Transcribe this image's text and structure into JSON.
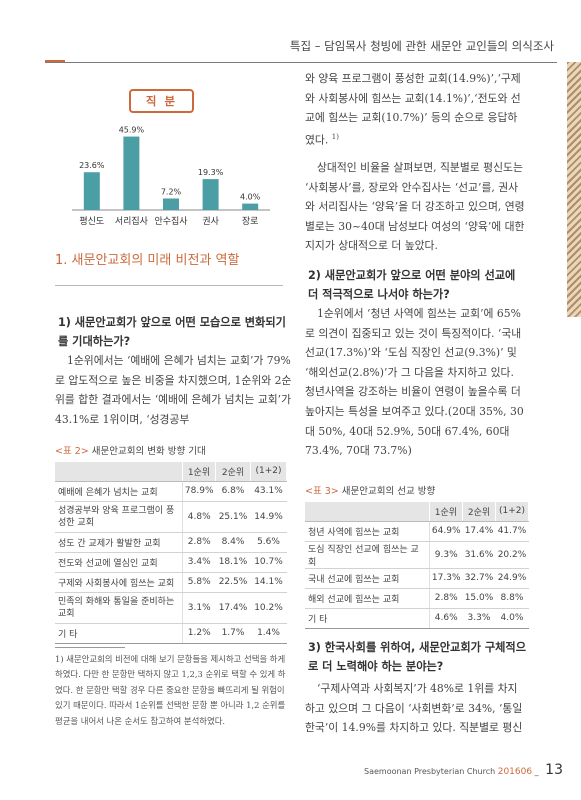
{
  "header": {
    "title": "특집 – 담임목사 청빙에 관한 새문안 교인들의 의식조사"
  },
  "chart": {
    "title": "직 분",
    "bar_color": "#4b9ea3"
  },
  "chart_data": {
    "type": "bar",
    "title": "직 분",
    "categories": [
      "평신도",
      "서리집사",
      "안수집사",
      "권사",
      "장로"
    ],
    "values": [
      23.6,
      45.9,
      7.2,
      19.3,
      4.0
    ],
    "value_labels": [
      "23.6%",
      "45.9%",
      "7.2%",
      "19.3%",
      "4.0%"
    ],
    "ylim": [
      0,
      50
    ],
    "grid": false
  },
  "section1": {
    "title": "1. 새문안교회의 미래 비전과 역할"
  },
  "q1": {
    "title": "1) 새문안교회가 앞으로 어떤 모습으로 변화되기를 기대하는가?"
  },
  "left_paragraph": "1순위에서는 ‘예배에 은혜가 넘치는 교회’가 79%로 압도적으로 높은 비중을 차지했으며, 1순위와 2순위를 합한 결과에서는 ‘예배에 은혜가 넘치는 교회’가 43.1%로 1위이며, ‘성경공부",
  "table2": {
    "label": "<표 2>",
    "caption": "새문안교회의 변화 방향 기대",
    "headers": [
      "",
      "1순위",
      "2순위",
      "(1+2)"
    ],
    "rows": [
      {
        "item": "예배에 은혜가 넘치는 교회",
        "r1": "78.9%",
        "r2": "6.8%",
        "sum": "43.1%"
      },
      {
        "item": "성경공부와 양육 프로그램이 풍성한 교회",
        "r1": "4.8%",
        "r2": "25.1%",
        "sum": "14.9%"
      },
      {
        "item": "성도 간 교제가 활발한 교회",
        "r1": "2.8%",
        "r2": "8.4%",
        "sum": "5.6%"
      },
      {
        "item": "전도와 선교에 열심인 교회",
        "r1": "3.4%",
        "r2": "18.1%",
        "sum": "10.7%"
      },
      {
        "item": "구제와 사회봉사에 힘쓰는 교회",
        "r1": "5.8%",
        "r2": "22.5%",
        "sum": "14.1%"
      },
      {
        "item": "민족의 화해와 통일을 준비하는 교회",
        "r1": "3.1%",
        "r2": "17.4%",
        "sum": "10.2%"
      },
      {
        "item": "기 타",
        "r1": "1.2%",
        "r2": "1.7%",
        "sum": "1.4%"
      }
    ]
  },
  "footnote": "1) 새문안교회의 비전에 대해 보기 문항들을 제시하고 선택을 하게 하였다. 다만 한 문항만 택하지 않고 1,2,3 순위로 택할 수 있게 하였다. 한 문항만 택할 경우 다른 중요한 문항을 빠뜨리게 될 위험이 있기 때문이다. 따라서 1순위를 선택한 문항 뿐 아니라 1,2 순위를 평균을 내어서 나온 순서도 참고하여 분석하였다.",
  "right_para1": "와 양육 프로그램이 풍성한 교회(14.9%)’,‘구제와 사회봉사에 힘쓰는 교회(14.1%)’,‘전도와 선교에 힘쓰는 교회(10.7%)’ 등의 순으로 응답하였다.",
  "right_para1_sup": "1)",
  "right_para2": "상대적인 비율을 살펴보면, 직분별로 평신도는 ‘사회봉사’를, 장로와 안수집사는 ‘선교’를, 권사와 서리집사는 ‘양육’을 더 강조하고 있으며, 연령별로는 30~40대 남성보다 여성의 ‘양육’에 대한 지지가 상대적으로 더 높았다.",
  "q2": {
    "title": "2) 새문안교회가 앞으로 어떤 분야의 선교에 더 적극적으로 나서야 하는가?"
  },
  "right_para3": "1순위에서 ‘청년 사역에 힘쓰는 교회’에 65%로 의견이 집중되고 있는 것이 특징적이다. ‘국내선교(17.3%)’와 ‘도심 직장인 선교(9.3%)’ 및 ‘해외선교(2.8%)’가 그 다음을 차지하고 있다. 청년사역을 강조하는 비율이 연령이 높을수록 더 높아지는 특성을 보여주고 있다.(20대 35%, 30대 50%, 40대 52.9%, 50대 67.4%, 60대 73.4%, 70대 73.7%)",
  "table3": {
    "label": "<표 3>",
    "caption": "새문안교회의 선교 방향",
    "headers": [
      "",
      "1순위",
      "2순위",
      "(1+2)"
    ],
    "rows": [
      {
        "item": "청년 사역에 힘쓰는 교회",
        "r1": "64.9%",
        "r2": "17.4%",
        "sum": "41.7%"
      },
      {
        "item": "도심 직장인 선교에 힘쓰는 교회",
        "r1": "9.3%",
        "r2": "31.6%",
        "sum": "20.2%"
      },
      {
        "item": "국내 선교에 힘쓰는 교회",
        "r1": "17.3%",
        "r2": "32.7%",
        "sum": "24.9%"
      },
      {
        "item": "해외 선교에 힘쓰는 교회",
        "r1": "2.8%",
        "r2": "15.0%",
        "sum": "8.8%"
      },
      {
        "item": "기 타",
        "r1": "4.6%",
        "r2": "3.3%",
        "sum": "4.0%"
      }
    ]
  },
  "q3": {
    "title": "3) 한국사회를 위하여, 새문안교회가 구체적으로 더 노력해야 하는 분야는?"
  },
  "right_para4": "‘구제사역과 사회복지’가 48%로 1위를 차지하고 있으며 그 다음이 ‘사회변화’로 34%, ‘통일한국’이 14.9%를 차지하고 있다. 직분별로 평신",
  "footer": {
    "publication": "Saemoonan Presbyterian Church",
    "issue": "201606",
    "sep": "_",
    "page": "13"
  }
}
